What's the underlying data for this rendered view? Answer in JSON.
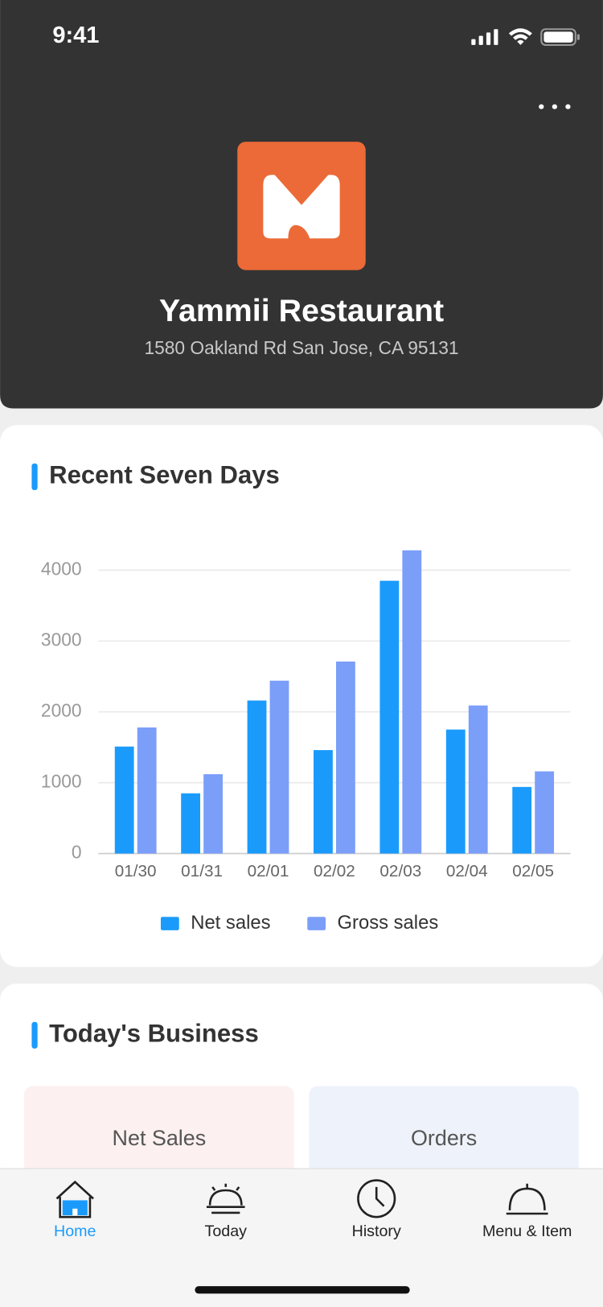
{
  "status_bar": {
    "time": "9:41"
  },
  "header": {
    "name": "Yammii Restaurant",
    "address": "1580 Oakland Rd San Jose, CA 95131"
  },
  "chart_data": {
    "type": "bar",
    "title": "Recent Seven Days",
    "categories": [
      "01/30",
      "01/31",
      "02/01",
      "02/02",
      "02/03",
      "02/04",
      "02/05"
    ],
    "series": [
      {
        "name": "Net sales",
        "color": "#1a9bfc",
        "values": [
          1510,
          850,
          2160,
          1460,
          3850,
          1750,
          940
        ]
      },
      {
        "name": "Gross sales",
        "color": "#7b9ef9",
        "values": [
          1780,
          1120,
          2440,
          2710,
          4280,
          2090,
          1160
        ]
      }
    ],
    "ylim": [
      0,
      4400
    ],
    "yticks": [
      0,
      1000,
      2000,
      3000,
      4000
    ],
    "grid": true,
    "legend": "bottom"
  },
  "business": {
    "title": "Today's Business",
    "cards": [
      "Net Sales",
      "Orders"
    ]
  },
  "tab_bar": {
    "tabs": [
      "Home",
      "Today",
      "History",
      "Menu & Item"
    ]
  }
}
